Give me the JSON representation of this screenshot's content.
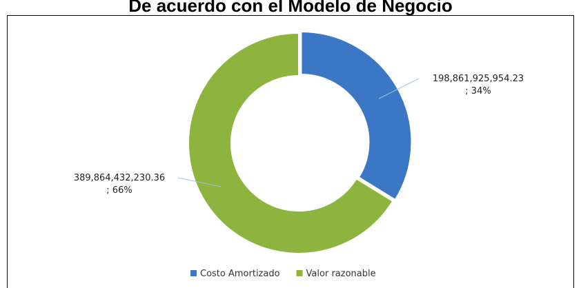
{
  "chart_data": {
    "type": "donut",
    "title": "De acuerdo con el Modelo de Negocio",
    "categories": [
      "Costo Amortizado",
      "Valor razonable"
    ],
    "values": [
      198861925954.23,
      389864432230.36
    ],
    "value_labels": [
      [
        "198,861,925,954.23",
        "; 34%"
      ],
      [
        "389,864,432,230.36",
        "; 66%"
      ]
    ],
    "colors": [
      "#3b77c5",
      "#8cb43f"
    ],
    "legend": "bottom"
  }
}
